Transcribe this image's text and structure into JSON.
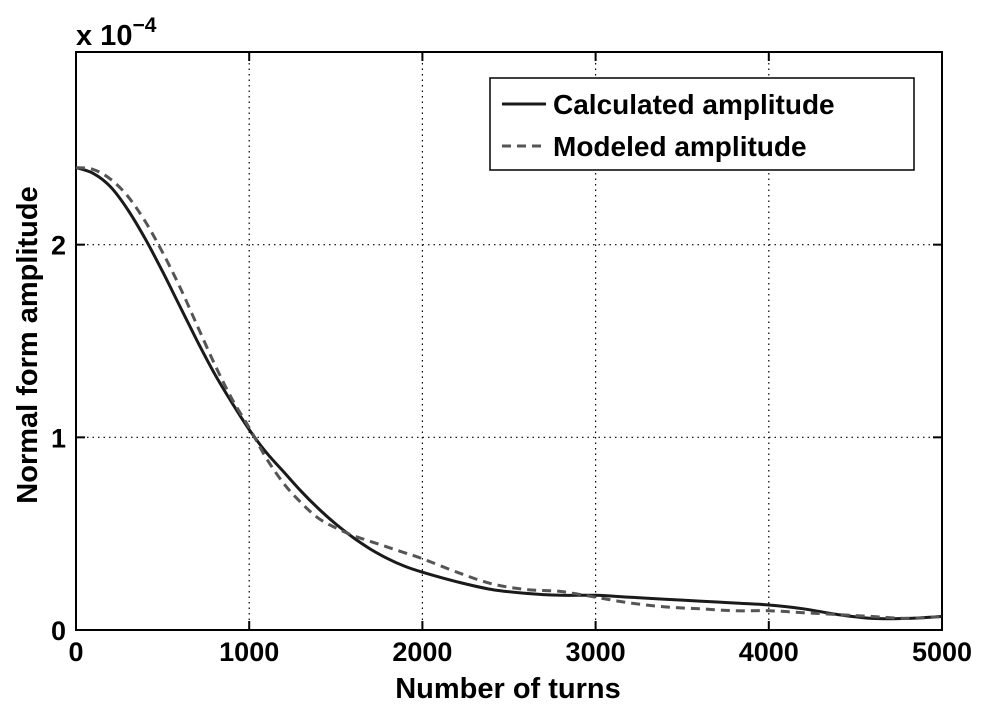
{
  "chart_data": {
    "type": "line",
    "xlabel": "Number of turns",
    "ylabel": "Normal form amplitude",
    "y_multiplier": "x 10",
    "y_multiplier_exponent": "−4",
    "xlim": [
      0,
      5000
    ],
    "ylim": [
      0,
      3
    ],
    "xticks": [
      0,
      1000,
      2000,
      3000,
      4000,
      5000
    ],
    "xtick_labels": [
      "0",
      "1000",
      "2000",
      "3000",
      "4000",
      "5000"
    ],
    "yticks": [
      0,
      1,
      2
    ],
    "ytick_labels": [
      "0",
      "1",
      "2"
    ],
    "grid": true,
    "legend_position": "top-right",
    "series": [
      {
        "name": "Calculated amplitude",
        "style": "solid",
        "color": "#1a1a1a",
        "x": [
          0,
          100,
          200,
          300,
          400,
          500,
          600,
          700,
          800,
          900,
          1000,
          1100,
          1200,
          1300,
          1400,
          1500,
          1600,
          1700,
          1800,
          1900,
          2000,
          2200,
          2400,
          2600,
          2800,
          3000,
          3200,
          3400,
          3600,
          3800,
          4000,
          4200,
          4400,
          4600,
          4800,
          5000
        ],
        "values": [
          2.4,
          2.37,
          2.3,
          2.18,
          2.03,
          1.86,
          1.68,
          1.5,
          1.33,
          1.18,
          1.04,
          0.92,
          0.82,
          0.72,
          0.63,
          0.55,
          0.48,
          0.42,
          0.37,
          0.33,
          0.3,
          0.25,
          0.21,
          0.19,
          0.18,
          0.18,
          0.17,
          0.16,
          0.15,
          0.14,
          0.13,
          0.11,
          0.08,
          0.06,
          0.06,
          0.07
        ]
      },
      {
        "name": "Modeled amplitude",
        "style": "dashed",
        "color": "#555555",
        "x": [
          0,
          100,
          200,
          300,
          400,
          500,
          600,
          700,
          800,
          900,
          1000,
          1100,
          1200,
          1300,
          1400,
          1500,
          1600,
          1700,
          1800,
          1900,
          2000,
          2200,
          2400,
          2600,
          2800,
          3000,
          3200,
          3400,
          3600,
          3800,
          4000,
          4200,
          4400,
          4600,
          4800,
          5000
        ],
        "values": [
          2.4,
          2.39,
          2.34,
          2.25,
          2.12,
          1.96,
          1.78,
          1.58,
          1.38,
          1.2,
          1.05,
          0.89,
          0.76,
          0.66,
          0.58,
          0.53,
          0.49,
          0.46,
          0.43,
          0.4,
          0.37,
          0.3,
          0.24,
          0.21,
          0.2,
          0.17,
          0.14,
          0.12,
          0.11,
          0.1,
          0.1,
          0.09,
          0.08,
          0.07,
          0.06,
          0.07
        ]
      }
    ]
  }
}
